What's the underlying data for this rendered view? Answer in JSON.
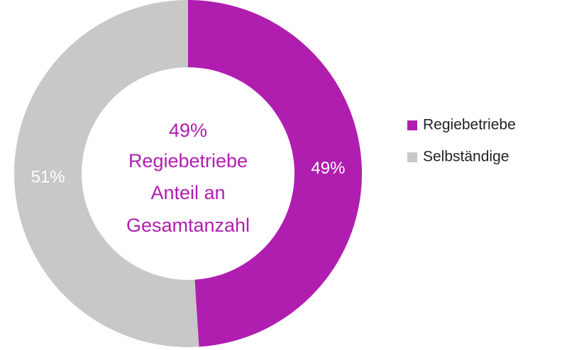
{
  "chart_data": {
    "type": "donut",
    "categories": [
      "Regiebetriebe",
      "Selbständige"
    ],
    "values": [
      49,
      51
    ],
    "value_labels": [
      "49%",
      "51%"
    ],
    "colors": [
      "#b01eb0",
      "#c8c8c8"
    ],
    "center_text": [
      "49%",
      "Regiebetriebe",
      "Anteil an",
      "Gesamtanzahl"
    ],
    "center_color": "#b01eb0",
    "legend": "right"
  }
}
